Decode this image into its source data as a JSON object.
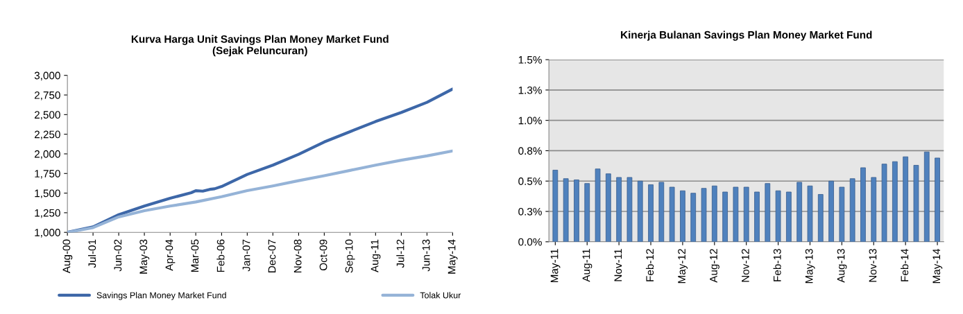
{
  "chart_data": [
    {
      "type": "line",
      "title": "Kurva Harga Unit Savings Plan Money Market Fund\n(Sejak Peluncuran)",
      "legend": "bottom",
      "grid": false,
      "series": [
        {
          "name": "Savings Plan Money Market Fund",
          "color": "#3d67a8",
          "x": [
            "2000-08",
            "2001-07",
            "2002-06",
            "2003-05",
            "2004-04",
            "2005-01",
            "2005-03",
            "2005-06",
            "2005-09",
            "2005-11",
            "2006-02",
            "2007-01",
            "2007-12",
            "2008-11",
            "2009-10",
            "2010-09",
            "2011-08",
            "2012-07",
            "2013-06",
            "2014-05"
          ],
          "values": [
            1000,
            1070,
            1225,
            1335,
            1434,
            1505,
            1530,
            1525,
            1548,
            1555,
            1584,
            1738,
            1856,
            1994,
            2152,
            2282,
            2412,
            2527,
            2657,
            2826
          ]
        },
        {
          "name": "Tolak Ukur",
          "color": "#95b3d7",
          "x": [
            "2000-08",
            "2001-07",
            "2002-06",
            "2003-05",
            "2004-04",
            "2005-03",
            "2006-02",
            "2007-01",
            "2007-12",
            "2008-11",
            "2009-10",
            "2010-09",
            "2011-08",
            "2012-07",
            "2013-06",
            "2014-05"
          ],
          "values": [
            1000,
            1060,
            1197,
            1276,
            1335,
            1387,
            1454,
            1532,
            1592,
            1659,
            1722,
            1789,
            1856,
            1919,
            1974,
            2037
          ]
        }
      ],
      "xlim": [
        "2000-08",
        "2014-05"
      ],
      "xticks": [
        {
          "value": "2000-08",
          "label": "Aug-00"
        },
        {
          "value": "2001-07",
          "label": "Jul-01"
        },
        {
          "value": "2002-06",
          "label": "Jun-02"
        },
        {
          "value": "2003-05",
          "label": "May-03"
        },
        {
          "value": "2004-04",
          "label": "Apr-04"
        },
        {
          "value": "2005-03",
          "label": "Mar-05"
        },
        {
          "value": "2006-02",
          "label": "Feb-06"
        },
        {
          "value": "2007-01",
          "label": "Jan-07"
        },
        {
          "value": "2007-12",
          "label": "Dec-07"
        },
        {
          "value": "2008-11",
          "label": "Nov-08"
        },
        {
          "value": "2009-10",
          "label": "Oct-09"
        },
        {
          "value": "2010-09",
          "label": "Sep-10"
        },
        {
          "value": "2011-08",
          "label": "Aug-11"
        },
        {
          "value": "2012-07",
          "label": "Jul-12"
        },
        {
          "value": "2013-06",
          "label": "Jun-13"
        },
        {
          "value": "2014-05",
          "label": "May-14"
        }
      ],
      "ylim": [
        1000,
        3000
      ],
      "yticks": [
        {
          "value": 1000,
          "label": "1,000"
        },
        {
          "value": 1250,
          "label": "1,250"
        },
        {
          "value": 1500,
          "label": "1,500"
        },
        {
          "value": 1750,
          "label": "1,750"
        },
        {
          "value": 2000,
          "label": "2,000"
        },
        {
          "value": 2250,
          "label": "2,250"
        },
        {
          "value": 2500,
          "label": "2,500"
        },
        {
          "value": 2750,
          "label": "2,750"
        },
        {
          "value": 3000,
          "label": "3,000"
        }
      ]
    },
    {
      "type": "bar",
      "title": "Kinerja Bulanan Savings Plan Money Market Fund",
      "grid": "y",
      "legend": false,
      "categories": [
        "May-11",
        null,
        null,
        "Aug-11",
        null,
        null,
        "Nov-11",
        null,
        null,
        "Feb-12",
        null,
        null,
        "May-12",
        null,
        null,
        "Aug-12",
        null,
        null,
        "Nov-12",
        null,
        null,
        "Feb-13",
        null,
        null,
        "May-13",
        null,
        null,
        "Aug-13",
        null,
        null,
        "Nov-13",
        null,
        null,
        "Feb-14",
        null,
        null,
        "May-14"
      ],
      "series": [
        {
          "color": "#4f81bd",
          "values": [
            0.59,
            0.52,
            0.51,
            0.48,
            0.6,
            0.56,
            0.53,
            0.53,
            0.5,
            0.47,
            0.49,
            0.45,
            0.42,
            0.4,
            0.44,
            0.46,
            0.41,
            0.45,
            0.45,
            0.41,
            0.48,
            0.42,
            0.41,
            0.49,
            0.46,
            0.39,
            0.5,
            0.45,
            0.52,
            0.61,
            0.53,
            0.64,
            0.66,
            0.7,
            0.63,
            0.74,
            0.69
          ]
        }
      ],
      "ylim": [
        0,
        1.5
      ],
      "yticks": [
        {
          "value": 0,
          "label": "0.0%"
        },
        {
          "value": 0.25,
          "label": "0.3%"
        },
        {
          "value": 0.5,
          "label": "0.5%"
        },
        {
          "value": 0.75,
          "label": "0.8%"
        },
        {
          "value": 1.0,
          "label": "1.0%"
        },
        {
          "value": 1.25,
          "label": "1.3%"
        },
        {
          "value": 1.5,
          "label": "1.5%"
        }
      ]
    }
  ]
}
